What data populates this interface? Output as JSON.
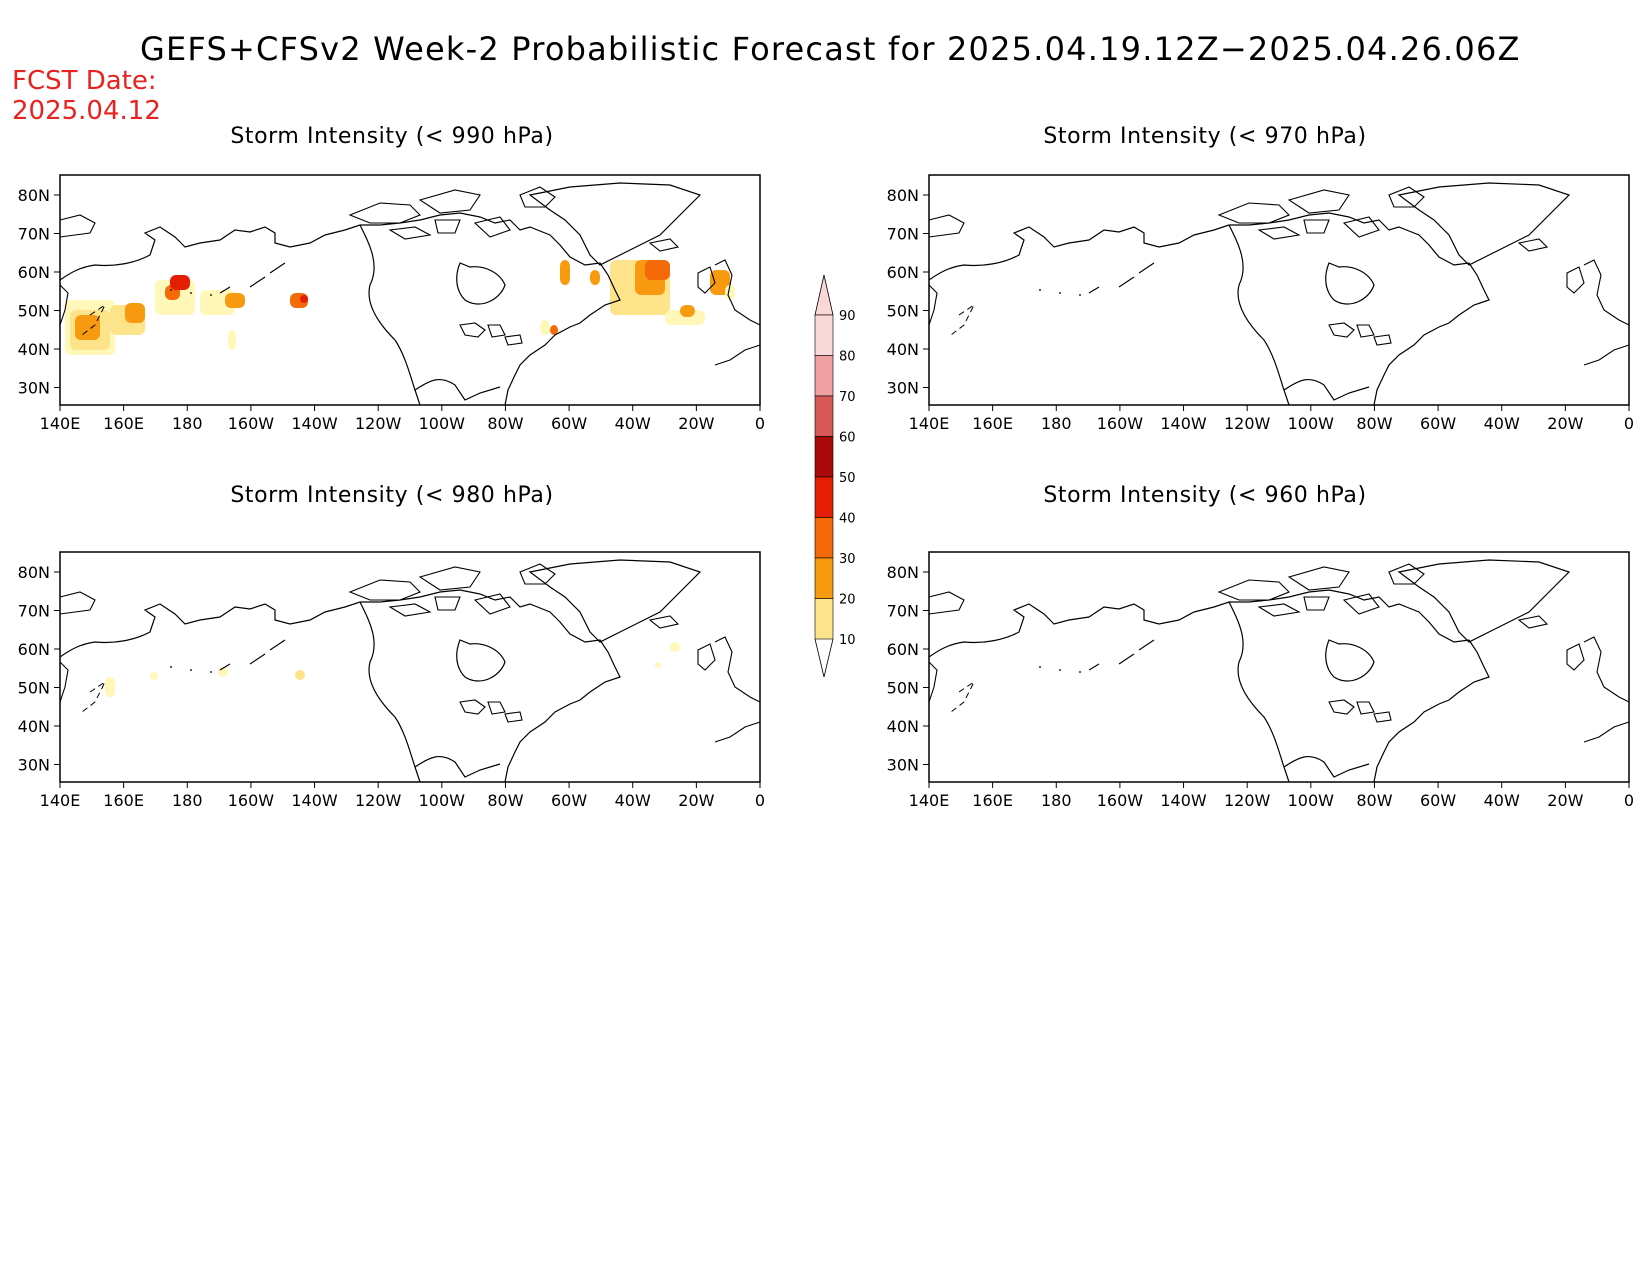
{
  "title": "GEFS+CFSv2 Week-2 Probabilistic Forecast for 2025.04.19.12Z−2025.04.26.06Z",
  "fcst_label": "FCST Date:",
  "fcst_date": "2025.04.12",
  "panels": [
    {
      "title": "Storm Intensity (< 990 hPa)"
    },
    {
      "title": "Storm Intensity (< 970 hPa)"
    },
    {
      "title": "Storm Intensity (< 980 hPa)"
    },
    {
      "title": "Storm Intensity (< 960 hPa)"
    }
  ],
  "axes": {
    "lat_labels": [
      "80N",
      "70N",
      "60N",
      "50N",
      "40N",
      "30N"
    ],
    "lon_labels": [
      "140E",
      "160E",
      "180",
      "160W",
      "140W",
      "120W",
      "100W",
      "80W",
      "60W",
      "40W",
      "20W",
      "0"
    ]
  },
  "colorbar": {
    "levels": [
      "10",
      "20",
      "30",
      "40",
      "50",
      "60",
      "70",
      "80",
      "90"
    ],
    "colors": [
      "#fff8b8",
      "#fde38a",
      "#f89a10",
      "#f46a08",
      "#e41e04",
      "#a80a0a",
      "#d85858",
      "#f0a0a0",
      "#fbd8d8"
    ]
  }
}
